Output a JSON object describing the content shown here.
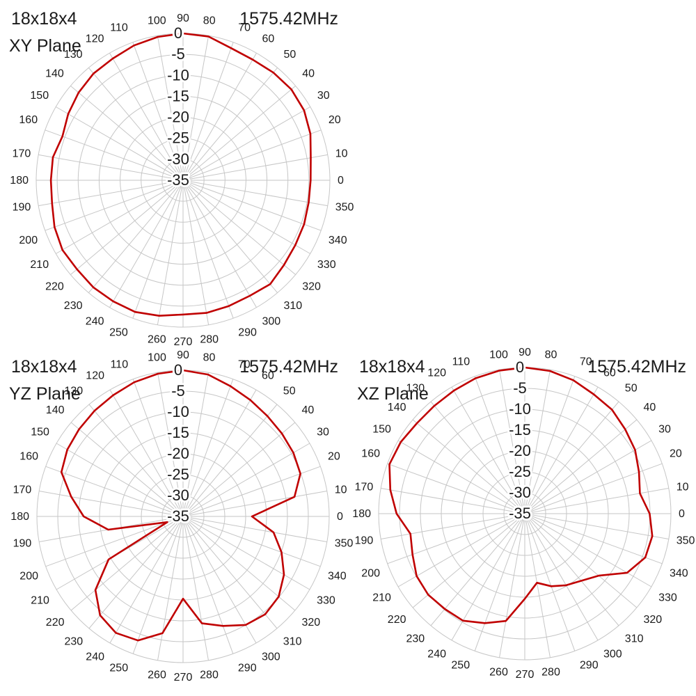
{
  "style": {
    "curve_color": "#C00000",
    "grid_color": "#C6C6C6",
    "label_color": "#1A1A1A",
    "background": "#FFFFFF"
  },
  "chart_data": [
    {
      "type": "line",
      "polar": true,
      "title": "18x18x4",
      "plane": "XY Plane",
      "frequency": "1575.42MHz",
      "units": "dB",
      "angle_direction": "counterclockwise",
      "zero_angle_position": "right",
      "grid": true,
      "legend": "none",
      "rlim": [
        -35,
        0
      ],
      "radial_ticks_db": [
        0,
        -5,
        -10,
        -15,
        -20,
        -25,
        -30,
        -35
      ],
      "angle_ticks_deg": [
        0,
        10,
        20,
        30,
        40,
        50,
        60,
        70,
        80,
        90,
        100,
        110,
        120,
        130,
        140,
        150,
        160,
        170,
        180,
        190,
        200,
        210,
        220,
        230,
        240,
        250,
        260,
        270,
        280,
        290,
        300,
        310,
        320,
        330,
        340,
        350
      ],
      "angles_deg": [
        0,
        10,
        20,
        30,
        40,
        50,
        60,
        70,
        80,
        90,
        100,
        110,
        120,
        130,
        140,
        150,
        160,
        170,
        180,
        190,
        200,
        210,
        220,
        230,
        240,
        250,
        260,
        270,
        280,
        290,
        300,
        310,
        320,
        330,
        340,
        350
      ],
      "values_db": [
        -4.6,
        -4.1,
        -2.7,
        -1.7,
        -1.3,
        -1.5,
        -1.8,
        -1.5,
        -0.2,
        0,
        -0.3,
        -0.8,
        -1.5,
        -1.8,
        -2.5,
        -3.4,
        -4.4,
        -3.5,
        -3.5,
        -3.3,
        -2.4,
        -1.8,
        -2.0,
        -1.7,
        -1.7,
        -1.6,
        -2.2,
        -3.0,
        -2.9,
        -3.1,
        -3.2,
        -2.7,
        -3.6,
        -4.1,
        -4.3,
        -4.6
      ]
    },
    {
      "type": "line",
      "polar": true,
      "title": "18x18x4",
      "plane": "YZ Plane",
      "frequency": "1575.42MHz",
      "units": "dB",
      "angle_direction": "counterclockwise",
      "zero_angle_position": "right",
      "grid": true,
      "legend": "none",
      "rlim": [
        -35,
        0
      ],
      "radial_ticks_db": [
        0,
        -5,
        -10,
        -15,
        -20,
        -25,
        -30,
        -35
      ],
      "angle_ticks_deg": [
        0,
        10,
        20,
        30,
        40,
        50,
        60,
        70,
        80,
        90,
        100,
        110,
        120,
        130,
        140,
        150,
        160,
        170,
        180,
        190,
        200,
        210,
        220,
        230,
        240,
        250,
        260,
        270,
        280,
        290,
        300,
        310,
        320,
        330,
        340,
        350
      ],
      "angles_deg": [
        0,
        10,
        20,
        30,
        40,
        50,
        60,
        70,
        80,
        90,
        100,
        110,
        120,
        130,
        140,
        150,
        160,
        170,
        180,
        190,
        200,
        210,
        220,
        230,
        240,
        250,
        260,
        270,
        280,
        290,
        300,
        310,
        320,
        330,
        340,
        350
      ],
      "values_db": [
        -18.5,
        -7.9,
        -5.1,
        -4.5,
        -4.1,
        -3.6,
        -2.8,
        -1.8,
        -0.5,
        0,
        -0.3,
        -0.8,
        -1.5,
        -2.0,
        -2.5,
        -3.0,
        -4.0,
        -7.8,
        -11.2,
        -16.8,
        -31.0,
        -14.4,
        -7.6,
        -4.1,
        -2.8,
        -3.4,
        -6.6,
        -15.3,
        -9.0,
        -7.1,
        -5.0,
        -4.4,
        -5.1,
        -7.1,
        -9.9,
        -13.0
      ]
    },
    {
      "type": "line",
      "polar": true,
      "title": "18x18x4",
      "plane": "XZ Plane",
      "frequency": "1575.42MHz",
      "units": "dB",
      "angle_direction": "counterclockwise",
      "zero_angle_position": "right",
      "grid": true,
      "legend": "none",
      "rlim": [
        -35,
        0
      ],
      "radial_ticks_db": [
        0,
        -5,
        -10,
        -15,
        -20,
        -25,
        -30,
        -35
      ],
      "angle_ticks_deg": [
        0,
        10,
        20,
        30,
        40,
        50,
        60,
        70,
        80,
        90,
        100,
        110,
        120,
        130,
        140,
        150,
        160,
        170,
        180,
        190,
        200,
        210,
        220,
        230,
        240,
        250,
        260,
        270,
        280,
        290,
        300,
        310,
        320,
        330,
        340,
        350
      ],
      "angles_deg": [
        0,
        10,
        20,
        30,
        40,
        50,
        60,
        70,
        80,
        90,
        100,
        110,
        120,
        130,
        140,
        150,
        160,
        170,
        180,
        190,
        200,
        210,
        220,
        230,
        240,
        250,
        260,
        270,
        280,
        290,
        300,
        310,
        320,
        330,
        340,
        350
      ],
      "values_db": [
        -5.1,
        -7.0,
        -5.9,
        -4.5,
        -3.6,
        -2.5,
        -2.0,
        -1.0,
        -0.3,
        0,
        -0.2,
        -0.5,
        -1.0,
        -1.3,
        -1.3,
        -0.7,
        -0.5,
        -2.3,
        -4.3,
        -7.2,
        -6.4,
        -5.1,
        -4.8,
        -5.2,
        -5.4,
        -7.1,
        -8.9,
        -14.6,
        -18.2,
        -16.5,
        -15.2,
        -14.0,
        -11.9,
        -6.7,
        -4.3,
        -4.0
      ]
    }
  ]
}
